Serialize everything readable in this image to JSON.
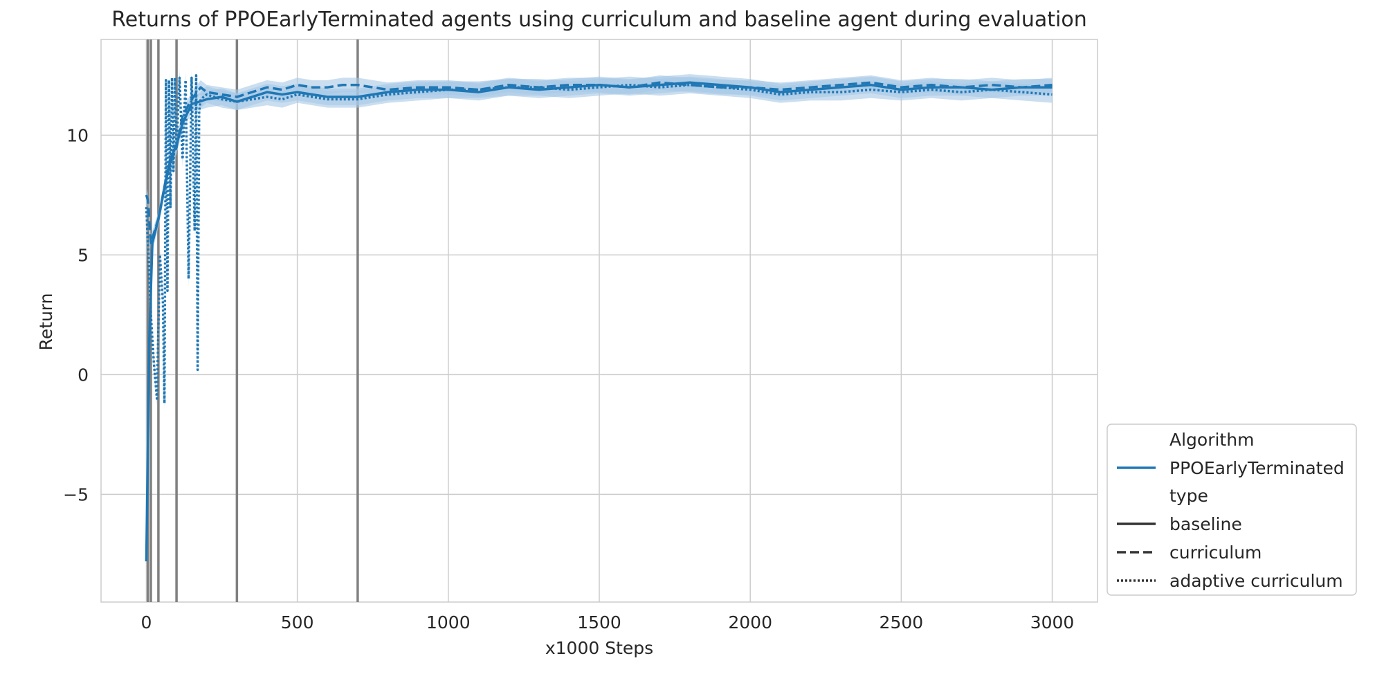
{
  "chart_data": {
    "type": "line",
    "title": "Returns of PPOEarlyTerminated agents using curriculum and baseline agent during evaluation",
    "xlabel": "x1000 Steps",
    "ylabel": "Return",
    "xlim": [
      -150,
      3150
    ],
    "ylim": [
      -9.5,
      14.0
    ],
    "x_ticks": [
      0,
      500,
      1000,
      1500,
      2000,
      2500,
      3000
    ],
    "x_tick_labels": [
      "0",
      "500",
      "1000",
      "1500",
      "2000",
      "2500",
      "3000"
    ],
    "y_ticks": [
      -5,
      0,
      5,
      10
    ],
    "y_tick_labels": [
      "−5",
      "0",
      "5",
      "10"
    ],
    "grid": true,
    "legend_placement": "outside-lower-right",
    "vertical_lines_x": [
      5,
      15,
      40,
      100,
      300,
      700
    ],
    "vertical_line_color": "#808080",
    "line_color": "#1f77b4",
    "band_color": "#a6c8e6",
    "legend": {
      "title_algorithm": "Algorithm",
      "algorithm_entry": "PPOEarlyTerminated",
      "title_type": "type",
      "type_entries": [
        "baseline",
        "curriculum",
        "adaptive curriculum"
      ]
    },
    "series": [
      {
        "name": "baseline",
        "style": "solid",
        "x": [
          0,
          10,
          20,
          40,
          60,
          80,
          100,
          120,
          150,
          200,
          250,
          300,
          350,
          400,
          450,
          500,
          600,
          700,
          800,
          900,
          1000,
          1100,
          1200,
          1300,
          1400,
          1500,
          1600,
          1700,
          1800,
          1900,
          2000,
          2100,
          2200,
          2300,
          2400,
          2500,
          2600,
          2700,
          2800,
          2900,
          3000
        ],
        "values": [
          -7.8,
          1.5,
          5.5,
          6.5,
          7.8,
          9.0,
          9.6,
          10.5,
          11.3,
          11.5,
          11.6,
          11.4,
          11.6,
          11.8,
          11.7,
          11.8,
          11.6,
          11.6,
          11.8,
          11.9,
          11.9,
          11.8,
          12.0,
          11.9,
          12.0,
          12.1,
          12.0,
          12.1,
          12.2,
          12.1,
          12.0,
          11.8,
          11.9,
          12.0,
          12.1,
          11.9,
          12.0,
          12.0,
          11.9,
          12.0,
          12.0
        ],
        "band": 0.35
      },
      {
        "name": "curriculum",
        "style": "dashed",
        "x": [
          0,
          5,
          15,
          40,
          70,
          100,
          120,
          150,
          180,
          200,
          250,
          300,
          350,
          400,
          450,
          500,
          550,
          600,
          650,
          700,
          800,
          900,
          1000,
          1100,
          1200,
          1300,
          1400,
          1500,
          1600,
          1700,
          1800,
          1900,
          2000,
          2100,
          2200,
          2300,
          2400,
          2500,
          2600,
          2700,
          2800,
          2900,
          3000
        ],
        "values": [
          7.5,
          7.3,
          5.5,
          6.5,
          8.5,
          9.5,
          10.8,
          11.5,
          12.0,
          11.8,
          11.7,
          11.6,
          11.8,
          12.0,
          11.9,
          12.1,
          12.0,
          12.0,
          12.1,
          12.1,
          11.9,
          12.0,
          12.0,
          11.9,
          12.1,
          12.0,
          12.1,
          12.1,
          12.0,
          12.2,
          12.1,
          12.0,
          12.0,
          11.9,
          12.0,
          12.1,
          12.2,
          12.0,
          12.1,
          12.0,
          12.1,
          12.0,
          12.1
        ],
        "band": 0.3
      },
      {
        "name": "adaptive curriculum",
        "style": "dotted",
        "x": [
          0,
          15,
          25,
          35,
          45,
          55,
          60,
          65,
          70,
          75,
          80,
          85,
          90,
          95,
          100,
          110,
          120,
          130,
          140,
          150,
          160,
          165,
          170,
          175,
          180,
          200,
          250,
          300,
          350,
          400,
          450,
          500,
          600,
          700,
          800,
          900,
          1000,
          1100,
          1200,
          1300,
          1400,
          1500,
          1600,
          1700,
          1800,
          1900,
          2000,
          2100,
          2200,
          2300,
          2400,
          2500,
          2600,
          2700,
          2800,
          2900,
          3000
        ],
        "values": [
          7.0,
          2.5,
          0.5,
          -1.0,
          5.0,
          3.0,
          -1.2,
          12.3,
          3.5,
          12.3,
          7.0,
          12.4,
          8.5,
          12.4,
          9.5,
          12.4,
          9.0,
          12.3,
          4.0,
          12.4,
          6.0,
          12.5,
          0.2,
          11.0,
          11.5,
          11.7,
          11.5,
          11.4,
          11.5,
          11.6,
          11.5,
          11.7,
          11.5,
          11.5,
          11.7,
          11.8,
          11.9,
          11.9,
          12.0,
          12.0,
          11.9,
          12.0,
          12.1,
          12.0,
          12.1,
          12.0,
          11.9,
          11.7,
          11.8,
          11.8,
          11.9,
          11.8,
          11.9,
          11.8,
          11.9,
          11.8,
          11.7
        ],
        "band": 0.35
      }
    ]
  }
}
